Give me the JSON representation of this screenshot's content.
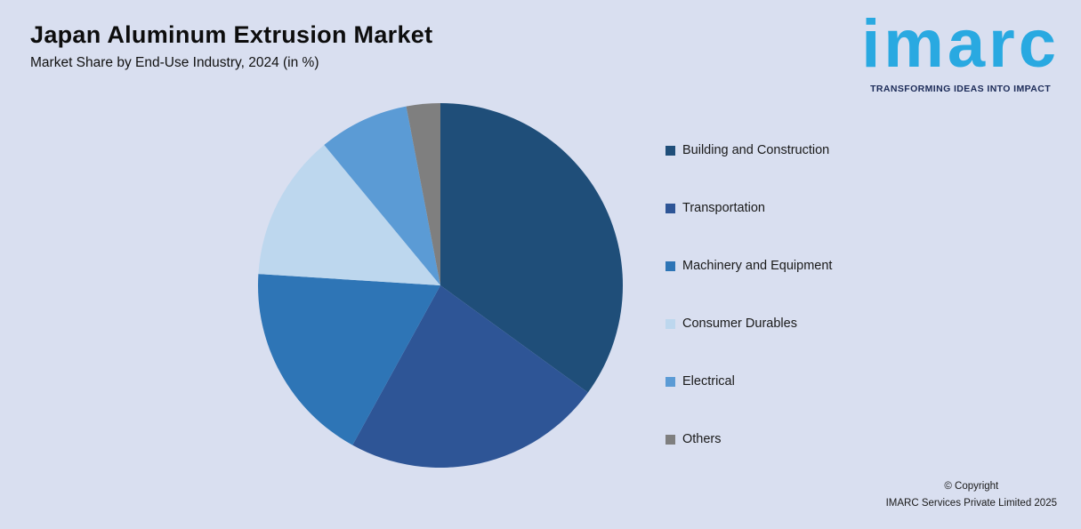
{
  "header": {
    "title": "Japan Aluminum Extrusion Market",
    "subtitle": "Market Share by End-Use Industry, 2024 (in %)"
  },
  "logo": {
    "text": "imarc",
    "tagline": "TRANSFORMING IDEAS INTO IMPACT",
    "brand_color": "#29a9e1",
    "tagline_color": "#1c2b58"
  },
  "footer": {
    "copyright_line1": "© Copyright",
    "copyright_line2": "IMARC Services Private Limited 2025"
  },
  "background_color": "#d9dff0",
  "chart_data": {
    "type": "pie",
    "title": "Japan Aluminum Extrusion Market",
    "subtitle": "Market Share by End-Use Industry, 2024 (in %)",
    "unit": "%",
    "start_angle_deg": 0,
    "direction": "clockwise",
    "legend_position": "right",
    "grid": false,
    "categories": [
      "Building and Construction",
      "Transportation",
      "Machinery and Equipment",
      "Consumer Durables",
      "Electrical",
      "Others"
    ],
    "values": [
      35,
      23,
      18,
      13,
      8,
      3
    ],
    "colors": [
      "#1F4E79",
      "#2E5596",
      "#2E75B6",
      "#BDD7EE",
      "#5B9BD5",
      "#7F7F7F"
    ]
  }
}
